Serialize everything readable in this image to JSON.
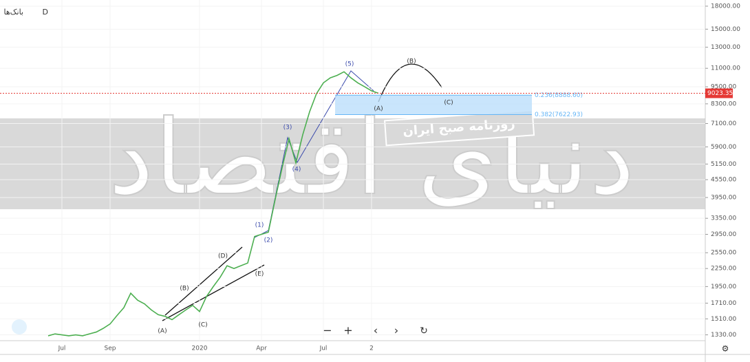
{
  "symbol": "بانک‌ها",
  "interval": "D",
  "watermark": "دنیای اقتصاد",
  "stamp": "روزنامه صبح ایران",
  "chart_data": {
    "type": "line",
    "log_scale": true,
    "color": "#4caf50",
    "values": [
      1320,
      1340,
      1330,
      1320,
      1330,
      1320,
      1340,
      1360,
      1400,
      1450,
      1550,
      1650,
      1850,
      1750,
      1700,
      1620,
      1560,
      1540,
      1500,
      1560,
      1620,
      1680,
      1600,
      1800,
      1950,
      2100,
      2300,
      2250,
      2300,
      2350,
      2900,
      2950,
      3000,
      3900,
      5000,
      6300,
      5200,
      6500,
      7800,
      9000,
      9800,
      10200,
      10400,
      10700,
      10200,
      9800,
      9500,
      9200,
      9023.35
    ],
    "xlim": [
      -7,
      95.5
    ],
    "xticks": [
      {
        "value": 2,
        "label": "Jul"
      },
      {
        "value": 9,
        "label": "Sep"
      },
      {
        "value": 22,
        "label": "2020"
      },
      {
        "value": 31,
        "label": "Apr"
      },
      {
        "value": 40,
        "label": "Jul"
      },
      {
        "value": 47,
        "label": "2"
      }
    ],
    "ylim": [
      1270,
      18900
    ],
    "yticks": [
      {
        "value": 1330,
        "label": "1330.00"
      },
      {
        "value": 1510,
        "label": "1510.00"
      },
      {
        "value": 1710,
        "label": "1710.00"
      },
      {
        "value": 1950,
        "label": "1950.00"
      },
      {
        "value": 2250,
        "label": "2250.00"
      },
      {
        "value": 2550,
        "label": "2550.00"
      },
      {
        "value": 2950,
        "label": "2950.00"
      },
      {
        "value": 3350,
        "label": "3350.00"
      },
      {
        "value": 3950,
        "label": "3950.00"
      },
      {
        "value": 4550,
        "label": "4550.00"
      },
      {
        "value": 5150,
        "label": "5150.00"
      },
      {
        "value": 5900,
        "label": "5900.00"
      },
      {
        "value": 7100,
        "label": "7100.00"
      },
      {
        "value": 8300,
        "label": "8300.00"
      },
      {
        "value": 9500,
        "label": "9500.00"
      },
      {
        "value": 11000,
        "label": "11000.00"
      },
      {
        "value": 13000,
        "label": "13000.00"
      },
      {
        "value": 15000,
        "label": "15000.00"
      },
      {
        "value": 18000,
        "label": "18000.00"
      }
    ],
    "current_price": 9023.35,
    "fib_levels": [
      {
        "value": 8888.6,
        "label": "0.236(8888.60)"
      },
      {
        "value": 7622.93,
        "label": "0.382(7622.93)"
      }
    ],
    "annotations": [
      "(A)",
      "(B)",
      "(C)",
      "(D)",
      "(E)",
      "(1)",
      "(2)",
      "(3)",
      "(4)",
      "(5)",
      "(A)",
      "(B)",
      "(C)"
    ]
  }
}
